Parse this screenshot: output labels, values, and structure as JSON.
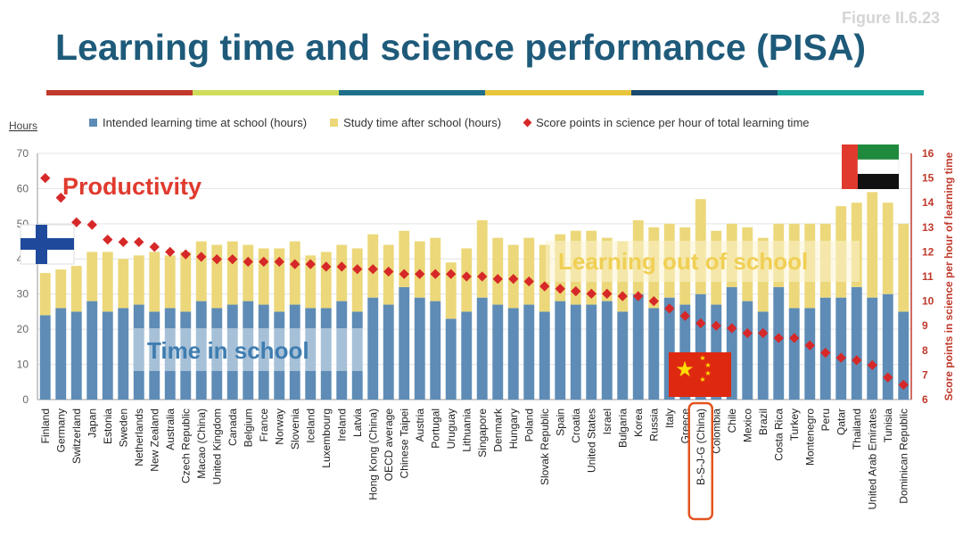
{
  "figure_label": "Figure II.6.23",
  "title": "Learning time and science performance (PISA)",
  "stripe_colors": [
    "#c0392b",
    "#cfdc5b",
    "#1f6f8b",
    "#e8c43a",
    "#1a4a6e",
    "#1aa39a"
  ],
  "legend": {
    "school": "Intended learning time at school (hours)",
    "after": "Study time after school (hours)",
    "score": "Score points in science per hour of total learning time"
  },
  "annotations": {
    "productivity": "Productivity",
    "learning_out": "Learning out of school",
    "time_in": "Time in school"
  },
  "colors": {
    "school": "#5e8cb6",
    "after": "#ecd87a",
    "score": "#d62828",
    "axis_left": "#555555",
    "axis_right": "#c0392b",
    "title": "#1e5a7a",
    "highlight": "#e2541f"
  },
  "highlight": "B-S-J-G (China)",
  "flags": [
    "finland-flag",
    "uae-flag",
    "china-flag"
  ],
  "chart_data": {
    "type": "bar",
    "stacked": true,
    "categories": [
      "Finland",
      "Germany",
      "Switzerland",
      "Japan",
      "Estonia",
      "Sweden",
      "Netherlands",
      "New Zealand",
      "Australia",
      "Czech Republic",
      "Macao (China)",
      "United Kingdom",
      "Canada",
      "Belgium",
      "France",
      "Norway",
      "Slovenia",
      "Iceland",
      "Luxembourg",
      "Ireland",
      "Latvia",
      "Hong Kong (China)",
      "OECD average",
      "Chinese Taipei",
      "Austria",
      "Portugal",
      "Uruguay",
      "Lithuania",
      "Singapore",
      "Denmark",
      "Hungary",
      "Poland",
      "Slovak Republic",
      "Spain",
      "Croatia",
      "United States",
      "Israel",
      "Bulgaria",
      "Korea",
      "Russia",
      "Italy",
      "Greece",
      "B-S-J-G (China)",
      "Colombia",
      "Chile",
      "Mexico",
      "Brazil",
      "Costa Rica",
      "Turkey",
      "Montenegro",
      "Peru",
      "Qatar",
      "Thailand",
      "United Arab Emirates",
      "Tunisia",
      "Dominican Republic"
    ],
    "series": [
      {
        "name": "Intended learning time at school (hours)",
        "values": [
          24,
          26,
          25,
          28,
          25,
          26,
          27,
          25,
          26,
          25,
          28,
          26,
          27,
          28,
          27,
          25,
          27,
          26,
          26,
          28,
          25,
          29,
          27,
          32,
          29,
          28,
          23,
          25,
          29,
          27,
          26,
          27,
          25,
          28,
          27,
          27,
          28,
          25,
          30,
          26,
          29,
          27,
          30,
          27,
          32,
          28,
          25,
          32,
          26,
          26,
          29,
          29,
          32,
          29,
          30,
          25
        ]
      },
      {
        "name": "Study time after school (hours)",
        "values": [
          12,
          11,
          13,
          14,
          17,
          14,
          14,
          17,
          15,
          17,
          17,
          18,
          18,
          16,
          16,
          18,
          18,
          15,
          16,
          16,
          18,
          18,
          17,
          16,
          16,
          18,
          16,
          18,
          22,
          19,
          18,
          19,
          19,
          19,
          21,
          21,
          18,
          20,
          21,
          23,
          21,
          22,
          27,
          21,
          18,
          21,
          21,
          18,
          24,
          24,
          21,
          26,
          24,
          30,
          26,
          25
        ]
      },
      {
        "name": "Score points in science per hour of total learning time",
        "axis": "right",
        "values": [
          15,
          14.2,
          13.2,
          13.1,
          12.5,
          12.4,
          12.4,
          12.2,
          12,
          11.9,
          11.8,
          11.7,
          11.7,
          11.6,
          11.6,
          11.6,
          11.5,
          11.5,
          11.4,
          11.4,
          11.3,
          11.3,
          11.2,
          11.1,
          11.1,
          11.1,
          11.1,
          11,
          11,
          10.9,
          10.9,
          10.8,
          10.6,
          10.5,
          10.4,
          10.3,
          10.3,
          10.2,
          10.2,
          10,
          9.7,
          9.4,
          9.1,
          9,
          8.9,
          8.7,
          8.7,
          8.5,
          8.5,
          8.2,
          7.9,
          7.7,
          7.6,
          7.4,
          6.9,
          6.6
        ]
      }
    ],
    "ylabel": "Hours",
    "ylim": [
      0,
      70
    ],
    "yticks": [
      0,
      10,
      20,
      30,
      40,
      50,
      60,
      70
    ],
    "y2label": "Score points in science per hour of learning time",
    "y2lim": [
      6,
      16
    ],
    "y2ticks": [
      6,
      7,
      8,
      9,
      10,
      11,
      12,
      13,
      14,
      15,
      16
    ],
    "grid": true,
    "legend_position": "top"
  }
}
